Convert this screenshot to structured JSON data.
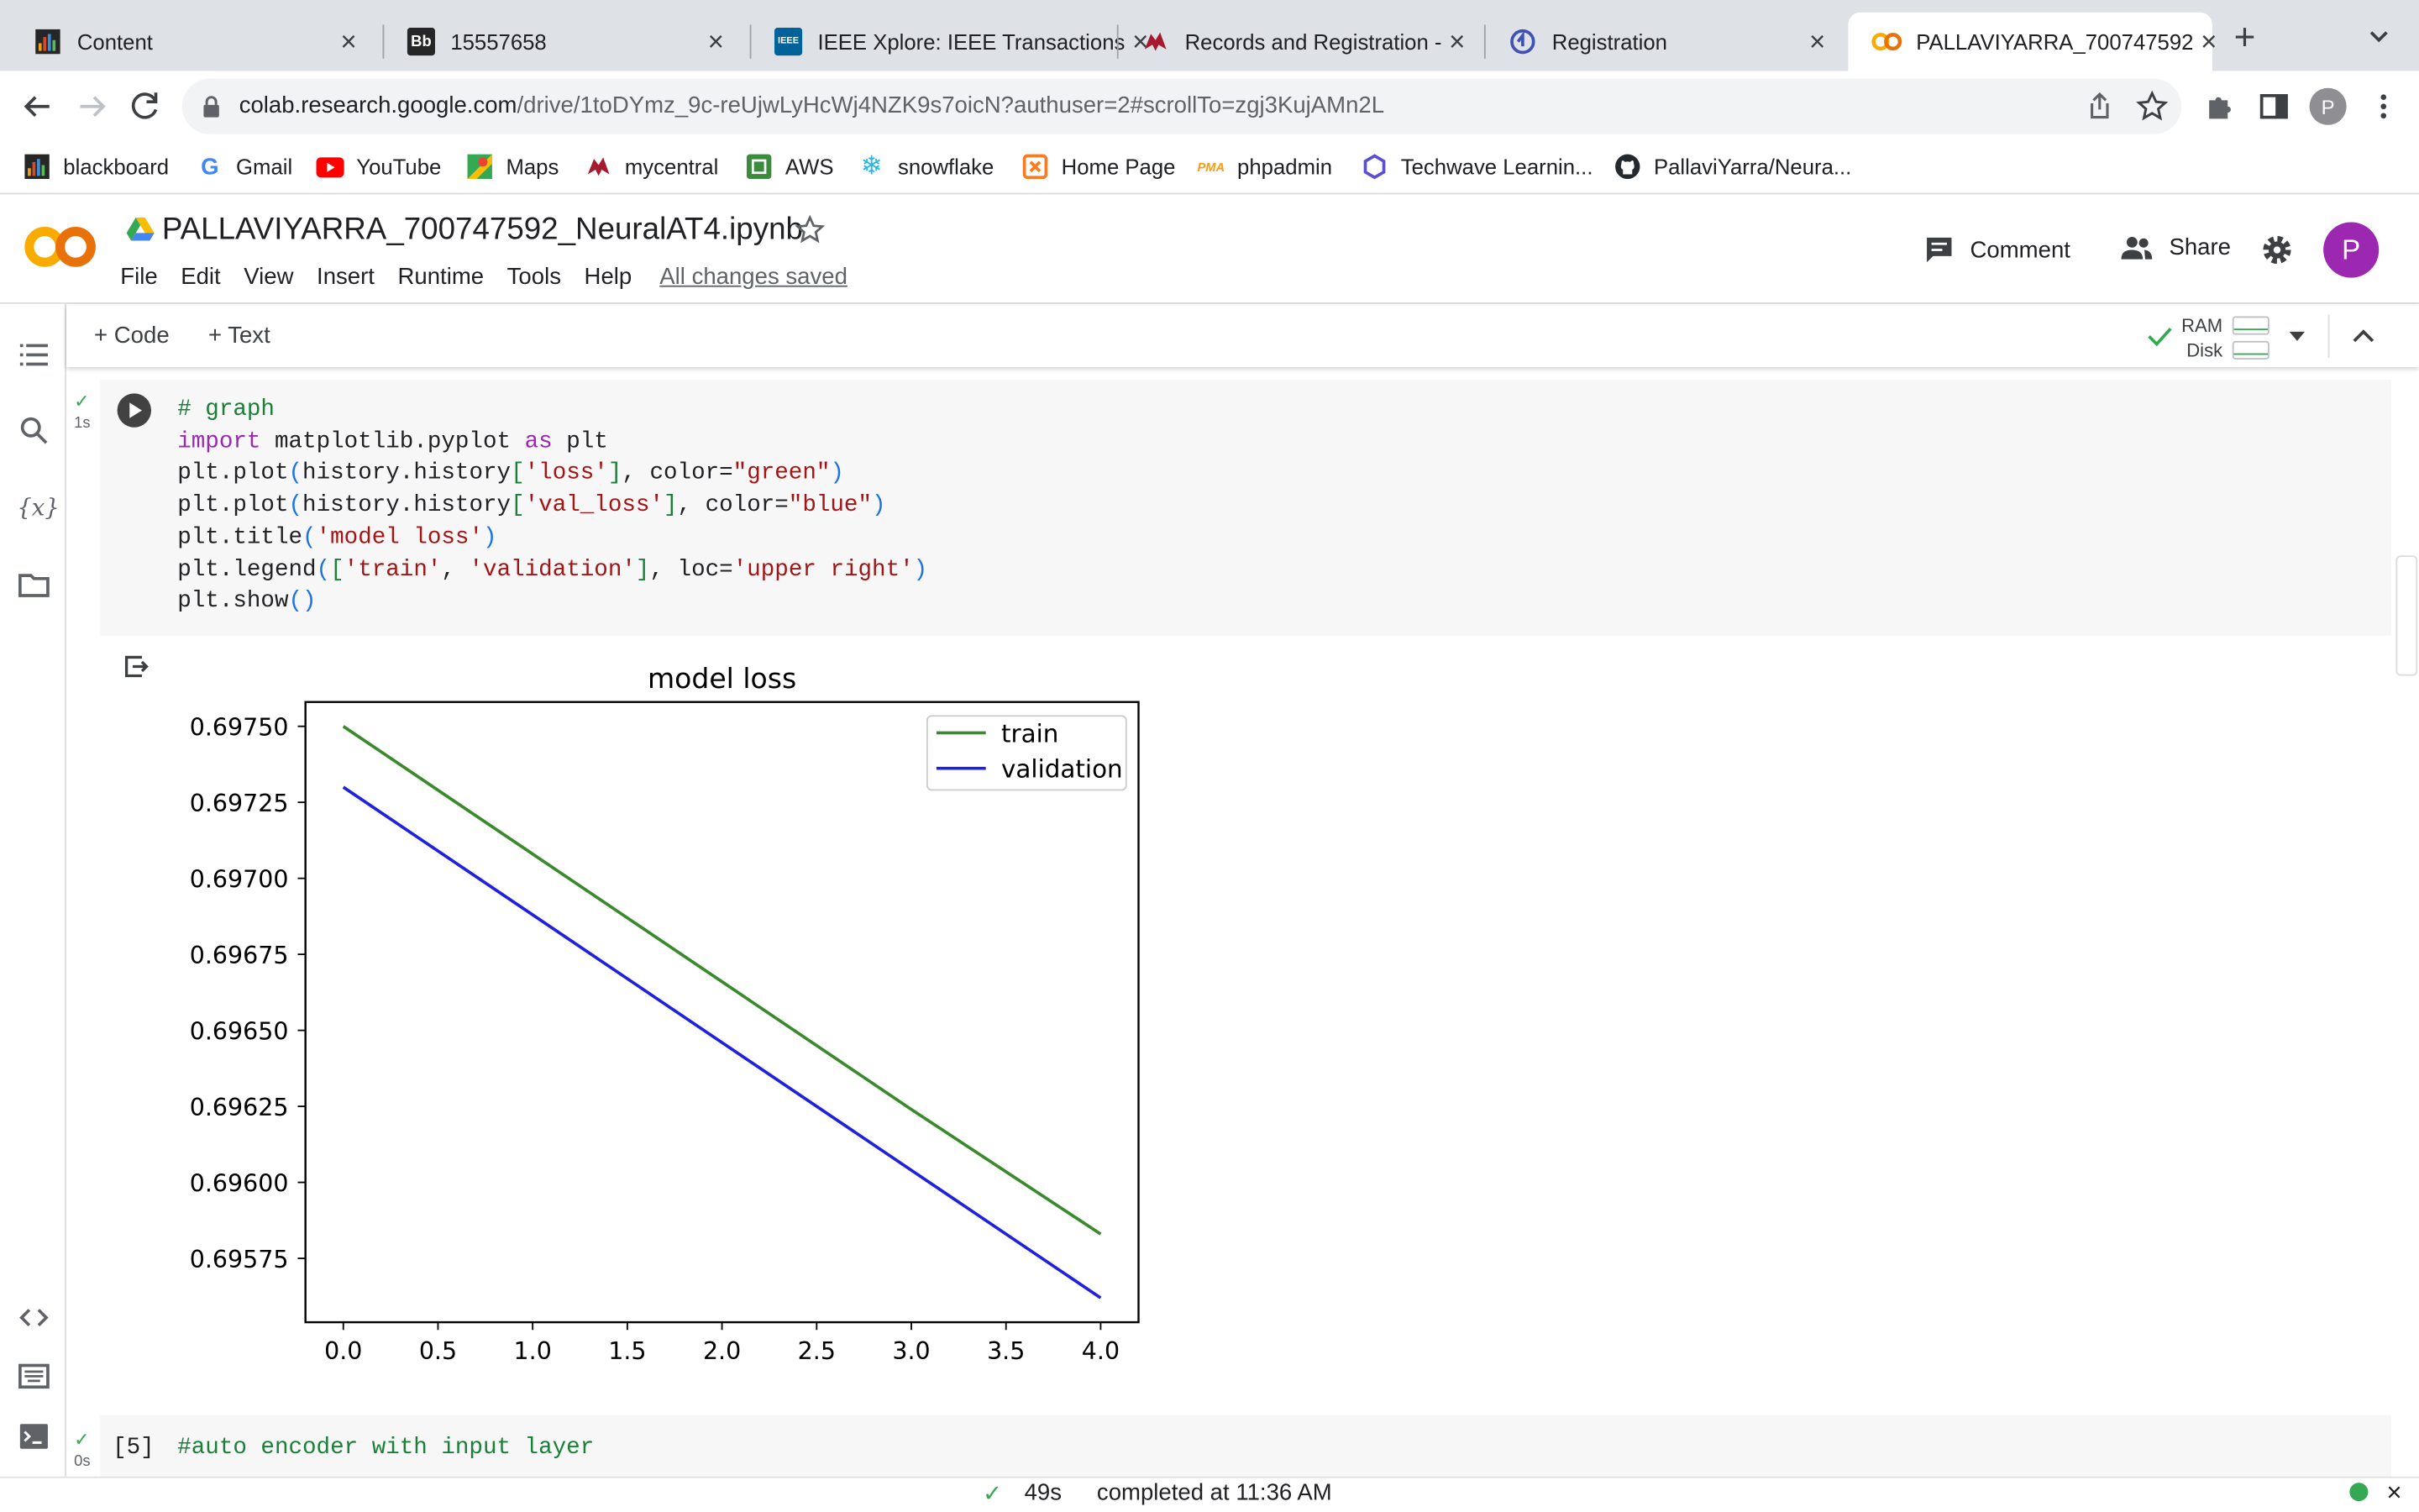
{
  "browser": {
    "tabs": [
      {
        "title": "Content",
        "favicon": "blackboard-favicon"
      },
      {
        "title": "15557658",
        "favicon": "bb-favicon"
      },
      {
        "title": "IEEE Xplore: IEEE Transactions",
        "favicon": "ieee-favicon"
      },
      {
        "title": "Records and Registration -",
        "favicon": "mule-favicon"
      },
      {
        "title": "Registration",
        "favicon": "registration-favicon"
      },
      {
        "title": "PALLAVIYARRA_700747592",
        "favicon": "colab-favicon",
        "active": true
      }
    ],
    "url_host": "colab.research.google.com",
    "url_path": "/drive/1toDYmz_9c-reUjwLyHcWj4NZK9s7oicN?authuser=2#scrollTo=zgj3KujAMn2L",
    "profile_initial": "P",
    "bookmarks": [
      {
        "label": "blackboard",
        "icon": "blackboard-icon"
      },
      {
        "label": "Gmail",
        "icon": "google-icon"
      },
      {
        "label": "YouTube",
        "icon": "youtube-icon"
      },
      {
        "label": "Maps",
        "icon": "maps-icon"
      },
      {
        "label": "mycentral",
        "icon": "mule-icon"
      },
      {
        "label": "AWS",
        "icon": "aws-icon"
      },
      {
        "label": "snowflake",
        "icon": "snowflake-icon"
      },
      {
        "label": "Home Page",
        "icon": "homepage-icon"
      },
      {
        "label": "phpadmin",
        "icon": "phpadmin-icon"
      },
      {
        "label": "Techwave Learnin...",
        "icon": "techwave-icon"
      },
      {
        "label": "PallaviYarra/Neura...",
        "icon": "github-icon"
      }
    ]
  },
  "colab": {
    "notebook_title": "PALLAVIYARRA_700747592_NeuralAT4.ipynb",
    "menu": [
      "File",
      "Edit",
      "View",
      "Insert",
      "Runtime",
      "Tools",
      "Help"
    ],
    "saved_status": "All changes saved",
    "comment_label": "Comment",
    "share_label": "Share",
    "avatar_initial": "P",
    "add_code_label": "+ Code",
    "add_text_label": "+ Text",
    "ram_label": "RAM",
    "disk_label": "Disk"
  },
  "cells": [
    {
      "check": "✓",
      "time": "1s",
      "code_lines": [
        [
          {
            "t": "# graph",
            "c": "cm"
          }
        ],
        [
          {
            "t": "import",
            "c": "kw"
          },
          {
            "t": " matplotlib.pyplot "
          },
          {
            "t": "as",
            "c": "kw"
          },
          {
            "t": " plt"
          }
        ],
        [
          {
            "t": "plt.plot"
          },
          {
            "t": "(",
            "c": "br"
          },
          {
            "t": "history.history"
          },
          {
            "t": "[",
            "c": "cm"
          },
          {
            "t": "'loss'",
            "c": "st"
          },
          {
            "t": "]",
            "c": "cm"
          },
          {
            "t": ", color="
          },
          {
            "t": "\"green\"",
            "c": "st"
          },
          {
            "t": ")",
            "c": "br"
          }
        ],
        [
          {
            "t": "plt.plot"
          },
          {
            "t": "(",
            "c": "br"
          },
          {
            "t": "history.history"
          },
          {
            "t": "[",
            "c": "cm"
          },
          {
            "t": "'val_loss'",
            "c": "st"
          },
          {
            "t": "]",
            "c": "cm"
          },
          {
            "t": ", color="
          },
          {
            "t": "\"blue\"",
            "c": "st"
          },
          {
            "t": ")",
            "c": "br"
          }
        ],
        [
          {
            "t": "plt.title"
          },
          {
            "t": "(",
            "c": "br"
          },
          {
            "t": "'model loss'",
            "c": "st"
          },
          {
            "t": ")",
            "c": "br"
          }
        ],
        [
          {
            "t": "plt.legend"
          },
          {
            "t": "(",
            "c": "br"
          },
          {
            "t": "[",
            "c": "cm"
          },
          {
            "t": "'train'",
            "c": "st"
          },
          {
            "t": ", "
          },
          {
            "t": "'validation'",
            "c": "st"
          },
          {
            "t": "]",
            "c": "cm"
          },
          {
            "t": ", loc="
          },
          {
            "t": "'upper right'",
            "c": "st"
          },
          {
            "t": ")",
            "c": "br"
          }
        ],
        [
          {
            "t": "plt.show"
          },
          {
            "t": "()",
            "c": "br"
          }
        ]
      ]
    },
    {
      "check": "✓",
      "time": "0s",
      "exec_count": "[5]",
      "code_line": "#auto encoder with input layer"
    }
  ],
  "chart_data": {
    "type": "line",
    "title": "model loss",
    "x": [
      0,
      1,
      2,
      3,
      4
    ],
    "series": [
      {
        "name": "train",
        "color": "#3a8a2c",
        "values": [
          0.6975,
          0.69708,
          0.69666,
          0.69624,
          0.69583
        ]
      },
      {
        "name": "validation",
        "color": "#2020e0",
        "values": [
          0.6973,
          0.69688,
          0.69646,
          0.69604,
          0.69562
        ]
      }
    ],
    "xticks": [
      "0.0",
      "0.5",
      "1.0",
      "1.5",
      "2.0",
      "2.5",
      "3.0",
      "3.5",
      "4.0"
    ],
    "yticks": [
      "0.69575",
      "0.69600",
      "0.69625",
      "0.69650",
      "0.69675",
      "0.69700",
      "0.69725",
      "0.69750"
    ],
    "xlim": [
      -0.2,
      4.2
    ],
    "ylim": [
      0.69554,
      0.69758
    ],
    "legend": "upper right",
    "grid": false
  },
  "status": {
    "check": "✓",
    "duration": "49s",
    "message": "completed at 11:36 AM"
  }
}
